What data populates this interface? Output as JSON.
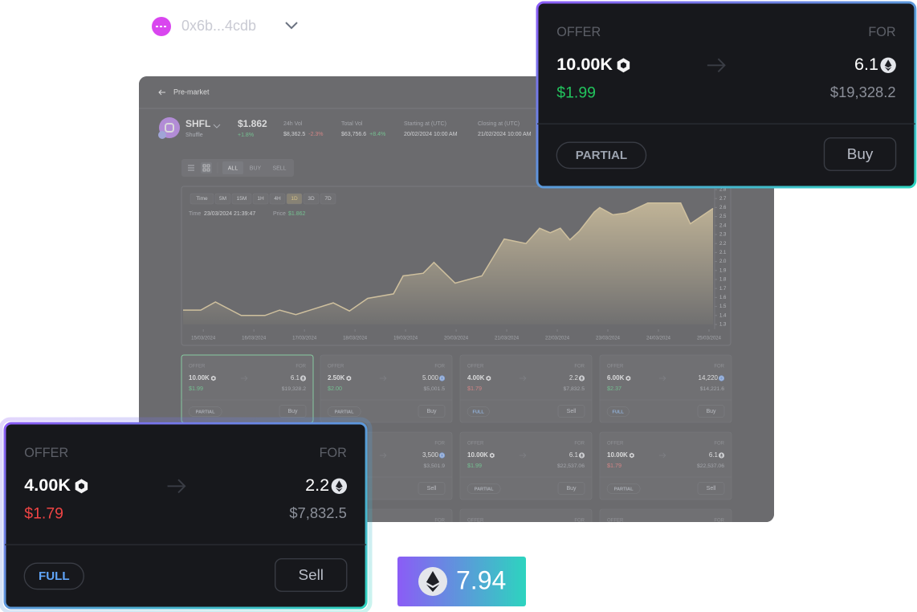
{
  "wallet": {
    "address": "0x6b...4cdb"
  },
  "header": {
    "back_label": "Pre-market"
  },
  "token": {
    "symbol": "SHFL",
    "name": "Shuffle",
    "price": "$1.862",
    "change": "+1.8%"
  },
  "stats": [
    {
      "label": "24h Vol",
      "value": "$8,362.5",
      "change": "-2.3%",
      "change_color": "#ef4444"
    },
    {
      "label": "Total Vol",
      "value": "$63,756.6",
      "change": "+8.4%",
      "change_color": "#22c55e"
    },
    {
      "label": "Starting at (UTC)",
      "value": "20/02/2024 10:00 AM"
    },
    {
      "label": "Closing at (UTC)",
      "value": "21/02/2024 10:00 AM"
    }
  ],
  "filters": [
    "ALL",
    "BUY",
    "SELL"
  ],
  "active_filter": 0,
  "chart_data": {
    "type": "area",
    "timeframes": [
      "Time",
      "5M",
      "15M",
      "1H",
      "4H",
      "1D",
      "3D",
      "7D"
    ],
    "active_timeframe": 5,
    "tooltip": {
      "time_label": "Time",
      "time": "23/03/2024 21:39:47",
      "price_label": "Price",
      "price": "$1.862"
    },
    "x": [
      -0.4,
      -0.05,
      0.24,
      0.75,
      1.22,
      1.51,
      1.83,
      2.57,
      2.89,
      3.25,
      3.76,
      3.95,
      4.35,
      4.56,
      4.98,
      5.51,
      5.95,
      6.38,
      6.65,
      6.86,
      7.06,
      7.25,
      7.44,
      7.73,
      7.84,
      8.1,
      8.37,
      8.79,
      9.16,
      9.44,
      9.63,
      10.08
    ],
    "series": [
      {
        "color": "#e8c77a",
        "values": [
          1.46,
          1.46,
          1.55,
          1.4,
          1.4,
          1.46,
          1.41,
          1.54,
          1.45,
          1.59,
          1.64,
          1.84,
          1.87,
          1.99,
          1.76,
          1.84,
          2.25,
          2.2,
          2.37,
          2.32,
          2.37,
          2.24,
          2.34,
          2.55,
          2.6,
          2.52,
          2.54,
          2.65,
          2.65,
          2.65,
          2.42,
          2.59
        ]
      }
    ],
    "xlim": [
      -0.4,
      10.08
    ],
    "xticks": [
      {
        "value": 0,
        "label": "15/03/2024"
      },
      {
        "value": 1,
        "label": "16/03/2024"
      },
      {
        "value": 2,
        "label": "17/03/2024"
      },
      {
        "value": 3,
        "label": "18/03/2024"
      },
      {
        "value": 4,
        "label": "19/03/2024"
      },
      {
        "value": 5,
        "label": "20/03/2024"
      },
      {
        "value": 6,
        "label": "21/03/2024"
      },
      {
        "value": 7,
        "label": "22/03/2024"
      },
      {
        "value": 8,
        "label": "23/03/2024"
      },
      {
        "value": 9,
        "label": "24/03/2024"
      },
      {
        "value": 10,
        "label": "25/03/2024"
      }
    ],
    "ylim": [
      1.3,
      2.8
    ],
    "yticks": [
      1.3,
      1.4,
      1.5,
      1.6,
      1.7,
      1.8,
      1.9,
      {
        "value": 2,
        "label": "2.0"
      },
      2.1,
      2.2,
      2.3,
      2.4,
      2.5,
      2.6,
      2.7,
      2.8
    ]
  },
  "card_labels": {
    "offer": "OFFER",
    "for": "FOR"
  },
  "selected_order": 0,
  "orders": [
    {
      "offer": "10.00K",
      "for": "6.1",
      "for_token": "eth",
      "price": "$1.99",
      "price_color": "#22c55e",
      "total": "$19,328.2",
      "fill": "PARTIAL",
      "fill_color": "#9ca3af",
      "action": "Buy"
    },
    {
      "offer": "2.50K",
      "for": "5.000",
      "for_token": "usdc",
      "price": "$2.00",
      "price_color": "#22c55e",
      "total": "$5,001.5",
      "fill": "PARTIAL",
      "fill_color": "#9ca3af",
      "action": "Buy"
    },
    {
      "offer": "4.00K",
      "for": "2.2",
      "for_token": "eth",
      "price": "$1.79",
      "price_color": "#ef4444",
      "total": "$7,832.5",
      "fill": "FULL",
      "fill_color": "#60a5fa",
      "action": "Sell"
    },
    {
      "offer": "6.00K",
      "for": "14,220",
      "for_token": "usdc",
      "price": "$2.37",
      "price_color": "#22c55e",
      "total": "$14,221.6",
      "fill": "FULL",
      "fill_color": "#60a5fa",
      "action": "Buy"
    },
    null,
    {
      "for": "3,500",
      "for_token": "usdc",
      "total": "$3,501.9",
      "action": "Sell"
    },
    {
      "offer": "10.00K",
      "for": "6.1",
      "for_token": "eth",
      "price": "$1.99",
      "price_color": "#22c55e",
      "total": "$22,537.06",
      "fill": "PARTIAL",
      "fill_color": "#9ca3af",
      "action": "Buy"
    },
    {
      "offer": "10.00K",
      "for": "6.1",
      "for_token": "eth",
      "price": "$1.79",
      "price_color": "#ef4444",
      "total": "$22,537.06",
      "fill": "PARTIAL",
      "fill_color": "#9ca3af",
      "action": "Sell"
    },
    null,
    {},
    {},
    {}
  ],
  "balance_badge": {
    "token": "eth",
    "value": 7.94
  }
}
